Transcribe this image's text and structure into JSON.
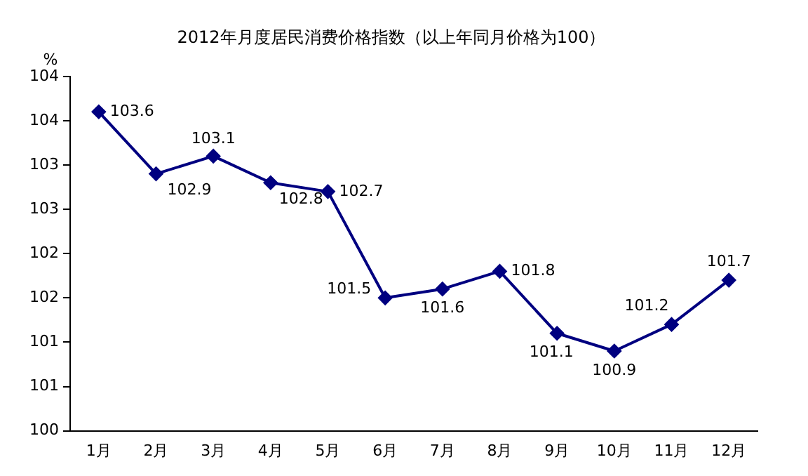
{
  "chart_data": {
    "type": "line",
    "title": "2012年月度居民消费价格指数（以上年同月价格为100）",
    "ylabel": "%",
    "categories": [
      "1月",
      "2月",
      "3月",
      "4月",
      "5月",
      "6月",
      "7月",
      "8月",
      "9月",
      "10月",
      "11月",
      "12月"
    ],
    "series": [
      {
        "color": "#000080",
        "values": [
          103.6,
          102.9,
          103.1,
          102.8,
          102.7,
          101.5,
          101.6,
          101.8,
          101.1,
          100.9,
          101.2,
          101.7
        ]
      }
    ],
    "ylim": [
      100,
      104
    ],
    "yticks": [
      100,
      {
        "value": 100.5,
        "label": "101"
      },
      101,
      {
        "value": 101.5,
        "label": "102"
      },
      102,
      {
        "value": 102.5,
        "label": "103"
      },
      103,
      {
        "value": 103.5,
        "label": "104"
      },
      104
    ],
    "data_labels": true,
    "marker": "diamond",
    "line_style": "solid",
    "grid": false,
    "legend": false
  }
}
